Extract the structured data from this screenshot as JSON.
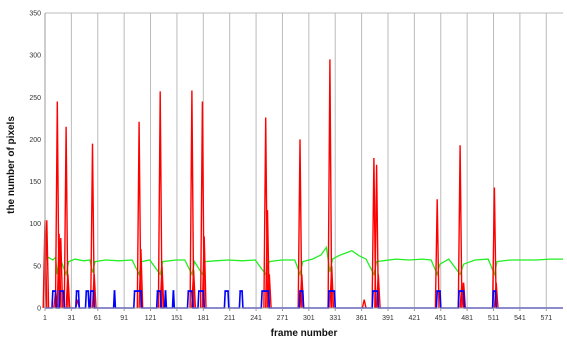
{
  "chart_data": {
    "type": "line",
    "title": "",
    "xlabel": "frame number",
    "ylabel": "the number of pixels",
    "xlim": [
      1,
      590
    ],
    "ylim": [
      0,
      350
    ],
    "x_ticks": [
      1,
      31,
      61,
      91,
      121,
      151,
      181,
      211,
      241,
      271,
      301,
      331,
      361,
      391,
      421,
      451,
      481,
      511,
      541,
      571
    ],
    "y_ticks": [
      0,
      50,
      100,
      150,
      200,
      250,
      300,
      350
    ],
    "grid": {
      "vertical": true,
      "horizontal": false
    },
    "legend": "none",
    "colors": {
      "red": "#ff0000",
      "blue": "#0000ff",
      "green": "#22ee22",
      "grid": "#bbbbbb"
    },
    "series": [
      {
        "color": "red",
        "spikes": [
          {
            "x": 1,
            "y": 104
          },
          {
            "x": 3,
            "y": 104
          },
          {
            "x": 13,
            "y": 20
          },
          {
            "x": 15,
            "y": 245
          },
          {
            "x": 17,
            "y": 88
          },
          {
            "x": 19,
            "y": 83
          },
          {
            "x": 25,
            "y": 215
          },
          {
            "x": 27,
            "y": 40
          },
          {
            "x": 38,
            "y": 10
          },
          {
            "x": 55,
            "y": 195
          },
          {
            "x": 57,
            "y": 40
          },
          {
            "x": 108,
            "y": 221
          },
          {
            "x": 110,
            "y": 70
          },
          {
            "x": 132,
            "y": 257
          },
          {
            "x": 134,
            "y": 50
          },
          {
            "x": 168,
            "y": 258
          },
          {
            "x": 170,
            "y": 45
          },
          {
            "x": 180,
            "y": 245
          },
          {
            "x": 182,
            "y": 85
          },
          {
            "x": 252,
            "y": 226
          },
          {
            "x": 254,
            "y": 116
          },
          {
            "x": 256,
            "y": 40
          },
          {
            "x": 291,
            "y": 200
          },
          {
            "x": 293,
            "y": 40
          },
          {
            "x": 325,
            "y": 295
          },
          {
            "x": 327,
            "y": 50
          },
          {
            "x": 364,
            "y": 10
          },
          {
            "x": 375,
            "y": 178
          },
          {
            "x": 378,
            "y": 170
          },
          {
            "x": 380,
            "y": 40
          },
          {
            "x": 447,
            "y": 129
          },
          {
            "x": 473,
            "y": 193
          },
          {
            "x": 475,
            "y": 30
          },
          {
            "x": 477,
            "y": 30
          },
          {
            "x": 512,
            "y": 143
          },
          {
            "x": 514,
            "y": 30
          }
        ]
      },
      {
        "color": "blue",
        "pulses": [
          {
            "x1": 9,
            "x2": 14,
            "y": 20
          },
          {
            "x1": 17,
            "x2": 23,
            "y": 20
          },
          {
            "x1": 36,
            "x2": 40,
            "y": 20
          },
          {
            "x1": 47,
            "x2": 51,
            "y": 20
          },
          {
            "x1": 52,
            "x2": 57,
            "y": 20
          },
          {
            "x1": 79,
            "x2": 81,
            "y": 20
          },
          {
            "x1": 102,
            "x2": 111,
            "y": 20
          },
          {
            "x1": 128,
            "x2": 133,
            "y": 20
          },
          {
            "x1": 137,
            "x2": 139,
            "y": 20
          },
          {
            "x1": 146,
            "x2": 148,
            "y": 20
          },
          {
            "x1": 163,
            "x2": 169,
            "y": 20
          },
          {
            "x1": 175,
            "x2": 182,
            "y": 20
          },
          {
            "x1": 205,
            "x2": 210,
            "y": 20
          },
          {
            "x1": 222,
            "x2": 226,
            "y": 20
          },
          {
            "x1": 247,
            "x2": 256,
            "y": 20
          },
          {
            "x1": 290,
            "x2": 295,
            "y": 20
          },
          {
            "x1": 323,
            "x2": 331,
            "y": 20
          },
          {
            "x1": 373,
            "x2": 380,
            "y": 20
          },
          {
            "x1": 446,
            "x2": 451,
            "y": 20
          },
          {
            "x1": 471,
            "x2": 478,
            "y": 20
          },
          {
            "x1": 510,
            "x2": 514,
            "y": 20
          }
        ]
      },
      {
        "color": "green",
        "points": [
          {
            "x": 1,
            "y": 57
          },
          {
            "x": 5,
            "y": 60
          },
          {
            "x": 10,
            "y": 57
          },
          {
            "x": 13,
            "y": 60
          },
          {
            "x": 15,
            "y": 40
          },
          {
            "x": 17,
            "y": 55
          },
          {
            "x": 20,
            "y": 54
          },
          {
            "x": 25,
            "y": 40
          },
          {
            "x": 28,
            "y": 55
          },
          {
            "x": 35,
            "y": 58
          },
          {
            "x": 45,
            "y": 56
          },
          {
            "x": 52,
            "y": 57
          },
          {
            "x": 55,
            "y": 42
          },
          {
            "x": 58,
            "y": 55
          },
          {
            "x": 70,
            "y": 57
          },
          {
            "x": 85,
            "y": 56
          },
          {
            "x": 100,
            "y": 57
          },
          {
            "x": 108,
            "y": 40
          },
          {
            "x": 111,
            "y": 55
          },
          {
            "x": 120,
            "y": 57
          },
          {
            "x": 132,
            "y": 40
          },
          {
            "x": 135,
            "y": 55
          },
          {
            "x": 150,
            "y": 57
          },
          {
            "x": 160,
            "y": 57
          },
          {
            "x": 168,
            "y": 40
          },
          {
            "x": 171,
            "y": 55
          },
          {
            "x": 180,
            "y": 40
          },
          {
            "x": 183,
            "y": 55
          },
          {
            "x": 195,
            "y": 56
          },
          {
            "x": 210,
            "y": 57
          },
          {
            "x": 225,
            "y": 56
          },
          {
            "x": 240,
            "y": 57
          },
          {
            "x": 252,
            "y": 40
          },
          {
            "x": 256,
            "y": 55
          },
          {
            "x": 270,
            "y": 57
          },
          {
            "x": 285,
            "y": 57
          },
          {
            "x": 291,
            "y": 40
          },
          {
            "x": 294,
            "y": 55
          },
          {
            "x": 305,
            "y": 58
          },
          {
            "x": 315,
            "y": 63
          },
          {
            "x": 321,
            "y": 72
          },
          {
            "x": 325,
            "y": 43
          },
          {
            "x": 328,
            "y": 58
          },
          {
            "x": 335,
            "y": 62
          },
          {
            "x": 345,
            "y": 66
          },
          {
            "x": 350,
            "y": 68
          },
          {
            "x": 358,
            "y": 62
          },
          {
            "x": 366,
            "y": 58
          },
          {
            "x": 375,
            "y": 40
          },
          {
            "x": 378,
            "y": 55
          },
          {
            "x": 385,
            "y": 56
          },
          {
            "x": 400,
            "y": 58
          },
          {
            "x": 415,
            "y": 57
          },
          {
            "x": 430,
            "y": 58
          },
          {
            "x": 440,
            "y": 57
          },
          {
            "x": 447,
            "y": 40
          },
          {
            "x": 450,
            "y": 52
          },
          {
            "x": 460,
            "y": 58
          },
          {
            "x": 473,
            "y": 40
          },
          {
            "x": 477,
            "y": 52
          },
          {
            "x": 490,
            "y": 57
          },
          {
            "x": 505,
            "y": 58
          },
          {
            "x": 512,
            "y": 40
          },
          {
            "x": 515,
            "y": 55
          },
          {
            "x": 530,
            "y": 57
          },
          {
            "x": 545,
            "y": 57
          },
          {
            "x": 560,
            "y": 57
          },
          {
            "x": 575,
            "y": 58
          },
          {
            "x": 590,
            "y": 58
          }
        ]
      }
    ]
  }
}
